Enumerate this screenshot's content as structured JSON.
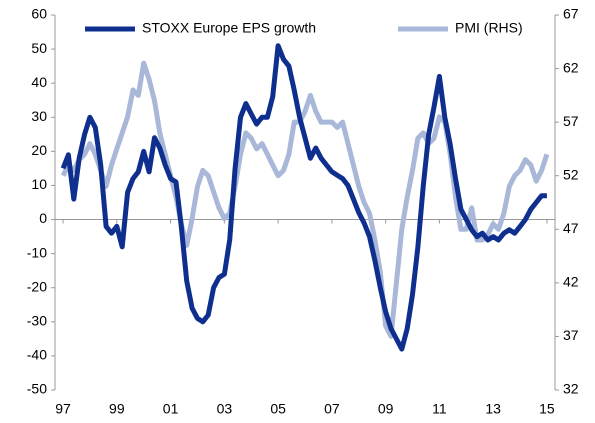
{
  "chart_data": {
    "type": "line",
    "x": [
      1997,
      1997.2,
      1997.4,
      1997.6,
      1997.8,
      1998,
      1998.2,
      1998.4,
      1998.6,
      1998.8,
      1999,
      1999.2,
      1999.4,
      1999.6,
      1999.8,
      2000,
      2000.2,
      2000.4,
      2000.6,
      2000.8,
      2001,
      2001.2,
      2001.4,
      2001.6,
      2001.8,
      2002,
      2002.2,
      2002.4,
      2002.6,
      2002.8,
      2003,
      2003.2,
      2003.4,
      2003.6,
      2003.8,
      2004,
      2004.2,
      2004.4,
      2004.6,
      2004.8,
      2005,
      2005.2,
      2005.4,
      2005.6,
      2005.8,
      2006,
      2006.2,
      2006.4,
      2006.6,
      2006.8,
      2007,
      2007.2,
      2007.4,
      2007.6,
      2007.8,
      2008,
      2008.2,
      2008.4,
      2008.6,
      2008.8,
      2009,
      2009.2,
      2009.4,
      2009.6,
      2009.8,
      2010,
      2010.2,
      2010.4,
      2010.6,
      2010.8,
      2011,
      2011.2,
      2011.4,
      2011.6,
      2011.8,
      2012,
      2012.2,
      2012.4,
      2012.6,
      2012.8,
      2013,
      2013.2,
      2013.4,
      2013.6,
      2013.8,
      2014,
      2014.2,
      2014.4,
      2014.6,
      2014.8,
      2015
    ],
    "series": [
      {
        "name": "STOXX Europe EPS growth",
        "color": "#0f2f8f",
        "values": [
          15,
          19,
          6,
          18,
          25,
          30,
          27,
          16,
          -2,
          -4,
          -2,
          -8,
          8,
          12,
          14,
          20,
          14,
          24,
          21,
          16,
          12,
          11,
          -2,
          -18,
          -26,
          -29,
          -30,
          -28,
          -20,
          -17,
          -16,
          -6,
          15,
          30,
          34,
          31,
          28,
          30,
          30,
          36,
          51,
          47,
          45,
          38,
          30,
          24,
          18,
          21,
          18,
          16,
          14,
          13,
          12,
          10,
          6,
          2,
          -1,
          -5,
          -12,
          -20,
          -27,
          -32,
          -35,
          -38,
          -32,
          -22,
          -8,
          10,
          25,
          33,
          42,
          30,
          22,
          12,
          3,
          0,
          -3,
          -5,
          -4,
          -6,
          -5,
          -6,
          -4,
          -3,
          -4,
          -2,
          0,
          3,
          5,
          7,
          7
        ]
      },
      {
        "name": "PMI (RHS)",
        "color": "#a9b7d9",
        "axis": "y2",
        "values": [
          52,
          53,
          52.5,
          53.5,
          54,
          55,
          54,
          52.5,
          51,
          53,
          54.5,
          56,
          57.5,
          60,
          59.5,
          62.5,
          61,
          59,
          56,
          54,
          52,
          50,
          47.5,
          45.5,
          48,
          51,
          52.5,
          52,
          50.5,
          49,
          48,
          48.5,
          51,
          54,
          56,
          55.5,
          54.5,
          55,
          54,
          53,
          52,
          52.5,
          54,
          57,
          57,
          58,
          59.5,
          58,
          57,
          57,
          57,
          56.5,
          57,
          55,
          53,
          51,
          49.5,
          48.5,
          46,
          43,
          38,
          37,
          42,
          47,
          50,
          52.5,
          55.5,
          56,
          55,
          55.5,
          57.5,
          57,
          54,
          50,
          47,
          47,
          49,
          46,
          46,
          46.5,
          47.5,
          47,
          48.5,
          51,
          52,
          52.5,
          53.5,
          53,
          51.5,
          52.5,
          54
        ]
      }
    ],
    "xlim": [
      1996.7,
      2015.3
    ],
    "xticks": [
      {
        "value": 1997,
        "label": "97"
      },
      {
        "value": 1999,
        "label": "99"
      },
      {
        "value": 2001,
        "label": "01"
      },
      {
        "value": 2003,
        "label": "03"
      },
      {
        "value": 2005,
        "label": "05"
      },
      {
        "value": 2007,
        "label": "07"
      },
      {
        "value": 2009,
        "label": "09"
      },
      {
        "value": 2011,
        "label": "11"
      },
      {
        "value": 2013,
        "label": "13"
      },
      {
        "value": 2015,
        "label": "15"
      }
    ],
    "ylim": [
      -50,
      60
    ],
    "yticks": [
      -50,
      -40,
      -30,
      -20,
      -10,
      0,
      10,
      20,
      30,
      40,
      50,
      60
    ],
    "y2lim": [
      32,
      67
    ],
    "y2ticks": [
      32,
      37,
      42,
      47,
      52,
      57,
      62,
      67
    ],
    "legend": "top"
  }
}
